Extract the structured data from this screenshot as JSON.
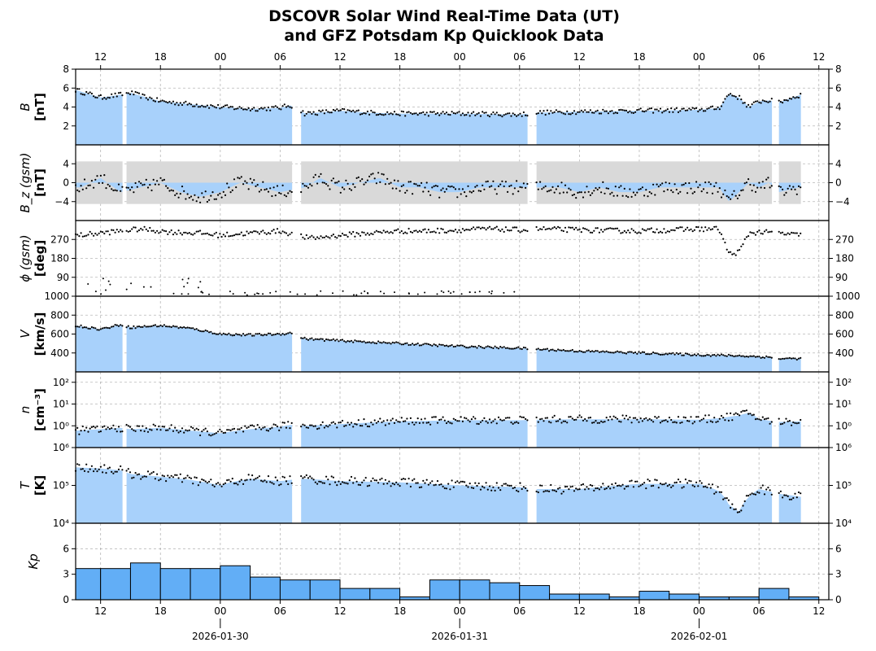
{
  "chart_data": {
    "type": "line",
    "title_line1": "DSCOVR Solar Wind Real-Time Data (UT)",
    "title_line2": "and GFZ Potsdam Kp Quicklook Data",
    "x_range_hours": [
      -14.5,
      61
    ],
    "x_hour_ticks": {
      "hours": [
        -12,
        -6,
        0,
        6,
        12,
        18,
        24,
        30,
        36,
        42,
        48,
        54,
        60
      ],
      "labels": [
        "12",
        "18",
        "00",
        "06",
        "12",
        "18",
        "00",
        "06",
        "12",
        "18",
        "00",
        "06",
        "12"
      ]
    },
    "x_dates": {
      "hours": [
        0,
        24,
        48
      ],
      "labels": [
        "2026-01-30",
        "2026-01-31",
        "2026-02-01"
      ]
    },
    "gaps_hours": [
      [
        -9.8,
        -9.4
      ],
      [
        7.2,
        8.1
      ],
      [
        30.8,
        31.7
      ],
      [
        55.3,
        56.0
      ]
    ],
    "data_end_hour": 58.2,
    "panels": [
      {
        "id": "B",
        "ylabel_line1": "B",
        "ylabel_line2": "[nT]",
        "scale": "linear",
        "ylim": [
          0,
          8
        ],
        "yticks": [
          2,
          4,
          6,
          8
        ],
        "ytick_labels": [
          "2",
          "4",
          "6",
          "8"
        ],
        "fill": true,
        "series": {
          "x": [
            -14.5,
            -12,
            -10,
            -9,
            -6,
            -3,
            0,
            3,
            6,
            7,
            8.5,
            12,
            15,
            18,
            24,
            30,
            31.7,
            36,
            42,
            48,
            50,
            51,
            52,
            53,
            54,
            55,
            56,
            58.2
          ],
          "y": [
            5.8,
            5.0,
            5.3,
            5.5,
            4.6,
            4.3,
            4.0,
            3.8,
            3.9,
            4.2,
            3.3,
            3.6,
            3.4,
            3.3,
            3.3,
            3.2,
            3.4,
            3.5,
            3.6,
            3.7,
            3.9,
            5.4,
            5.0,
            4.0,
            4.6,
            4.7,
            4.5,
            5.3
          ]
        }
      },
      {
        "id": "Bz",
        "ylabel_line1": "B_z (gsm)",
        "ylabel_line2": "[nT]",
        "scale": "linear",
        "ylim": [
          -8,
          8
        ],
        "yticks": [
          -4,
          0,
          4
        ],
        "ytick_labels": [
          "−4",
          "0",
          "4"
        ],
        "fill": true,
        "envelope_color": "#d9d9d9",
        "series": {
          "x": [
            -14,
            -12,
            -10,
            -8,
            -6,
            -4,
            -2,
            0,
            2,
            4,
            6,
            8.5,
            10,
            12,
            14,
            16,
            18,
            20,
            22,
            24,
            26,
            28,
            30,
            32,
            34,
            36,
            38,
            40,
            42,
            44,
            46,
            48,
            50,
            51,
            52,
            53,
            54,
            55,
            56,
            58
          ],
          "y": [
            -1,
            1,
            -2,
            -1,
            0,
            -2,
            -3,
            -2,
            0,
            -1,
            -2,
            -1,
            1,
            -1,
            0,
            1,
            -1,
            -1,
            -2,
            -2,
            -1,
            -1,
            -1,
            -1,
            -1,
            -2,
            -1,
            -2,
            -2,
            -1,
            -1,
            -1,
            -1,
            -4,
            -2,
            0,
            -1,
            0,
            -2,
            -1
          ]
        }
      },
      {
        "id": "phi",
        "ylabel_line1": "ϕ (gsm)",
        "ylabel_line2": "[deg]",
        "scale": "linear",
        "ylim": [
          0,
          360
        ],
        "yticks": [
          90,
          180,
          270
        ],
        "ytick_labels": [
          "90",
          "180",
          "270"
        ],
        "fill": false,
        "series": {
          "x": [
            -14,
            -12,
            -10,
            -8,
            -5,
            -2,
            0,
            3,
            6,
            9,
            12,
            15,
            18,
            21,
            24,
            27,
            30,
            32,
            36,
            42,
            48,
            50,
            51,
            52,
            53,
            54,
            56,
            58
          ],
          "y": [
            290,
            300,
            310,
            320,
            305,
            300,
            290,
            300,
            310,
            275,
            290,
            300,
            310,
            310,
            315,
            320,
            315,
            320,
            315,
            310,
            320,
            320,
            200,
            210,
            300,
            305,
            300,
            290
          ]
        }
      },
      {
        "id": "V",
        "ylabel_line1": "V",
        "ylabel_line2": "[km/s]",
        "scale": "linear",
        "ylim": [
          200,
          1000
        ],
        "yticks": [
          400,
          600,
          800,
          1000
        ],
        "ytick_labels": [
          "400",
          "600",
          "800",
          "1000"
        ],
        "fill": true,
        "series": {
          "x": [
            -14.5,
            -12,
            -10,
            -9,
            -6,
            -3,
            0,
            3,
            6,
            7,
            8.5,
            12,
            18,
            24,
            30,
            31.7,
            36,
            42,
            48,
            52,
            54,
            55,
            56,
            58.2
          ],
          "y": [
            690,
            650,
            700,
            670,
            690,
            660,
            600,
            590,
            600,
            610,
            550,
            530,
            500,
            470,
            450,
            440,
            420,
            400,
            380,
            370,
            360,
            355,
            340,
            340
          ]
        }
      },
      {
        "id": "n",
        "ylabel_line1": "n",
        "ylabel_line2": "[cm⁻³]",
        "scale": "log",
        "ylim": [
          0.1,
          300
        ],
        "yticks": [
          1,
          10,
          100
        ],
        "ytick_labels": [
          "10⁰",
          "10¹",
          "10²"
        ],
        "fill": true,
        "series": {
          "x": [
            -14.5,
            -12,
            -10,
            -9,
            -6,
            -3,
            0,
            3,
            6,
            7,
            8.5,
            12,
            15,
            18,
            24,
            30,
            31.7,
            36,
            42,
            48,
            50,
            52,
            53,
            54,
            56,
            58.2
          ],
          "y": [
            0.6,
            0.7,
            0.8,
            0.7,
            0.8,
            0.6,
            0.45,
            0.7,
            0.9,
            1.1,
            1.0,
            1.2,
            1.4,
            1.6,
            1.8,
            1.8,
            1.9,
            2.0,
            2.0,
            1.9,
            2.2,
            3.0,
            4.0,
            2.0,
            1.5,
            1.6
          ]
        }
      },
      {
        "id": "T",
        "ylabel_line1": "T",
        "ylabel_line2": "[K]",
        "scale": "log",
        "ylim": [
          10000,
          1000000
        ],
        "yticks": [
          10000,
          100000,
          1000000
        ],
        "ytick_labels": [
          "10⁴",
          "10⁵",
          "10⁶"
        ],
        "fill": true,
        "series": {
          "x": [
            -14.5,
            -12,
            -10,
            -9,
            -6,
            -3,
            0,
            1,
            3,
            6,
            7,
            8.5,
            12,
            18,
            24,
            30,
            31.7,
            36,
            42,
            48,
            50,
            51,
            52,
            53,
            54,
            56,
            58.2
          ],
          "y": [
            300000,
            280000,
            250000,
            200000,
            170000,
            140000,
            100000,
            120000,
            150000,
            130000,
            140000,
            150000,
            130000,
            120000,
            100000,
            90000,
            80000,
            80000,
            110000,
            110000,
            70000,
            30000,
            20000,
            50000,
            80000,
            60000,
            50000
          ]
        }
      },
      {
        "id": "Kp",
        "ylabel_line1": "Kp",
        "ylabel_line2": "",
        "scale": "linear",
        "type": "bar",
        "ylim": [
          0,
          9
        ],
        "yticks": [
          0,
          3,
          6
        ],
        "ytick_labels": [
          "0",
          "3",
          "6"
        ],
        "bar_width_hours": 3,
        "bar_starts_hours": [
          -15,
          -12,
          -9,
          -6,
          -3,
          0,
          3,
          6,
          9,
          12,
          15,
          18,
          21,
          24,
          27,
          30,
          33,
          36,
          39,
          42,
          45,
          48,
          51,
          54,
          57
        ],
        "values": [
          3.67,
          3.67,
          4.33,
          3.67,
          3.67,
          4.0,
          2.67,
          2.33,
          2.33,
          1.33,
          1.33,
          0.33,
          2.33,
          2.33,
          2.0,
          1.67,
          0.67,
          0.67,
          0.33,
          1.0,
          0.67,
          0.33,
          0.33,
          1.33,
          0.33
        ]
      }
    ],
    "colors": {
      "fill": "#a8d1fb",
      "bar": "#62aef6",
      "dots": "#000000",
      "grid": "#888888",
      "envelope": "#d9d9d9"
    }
  }
}
